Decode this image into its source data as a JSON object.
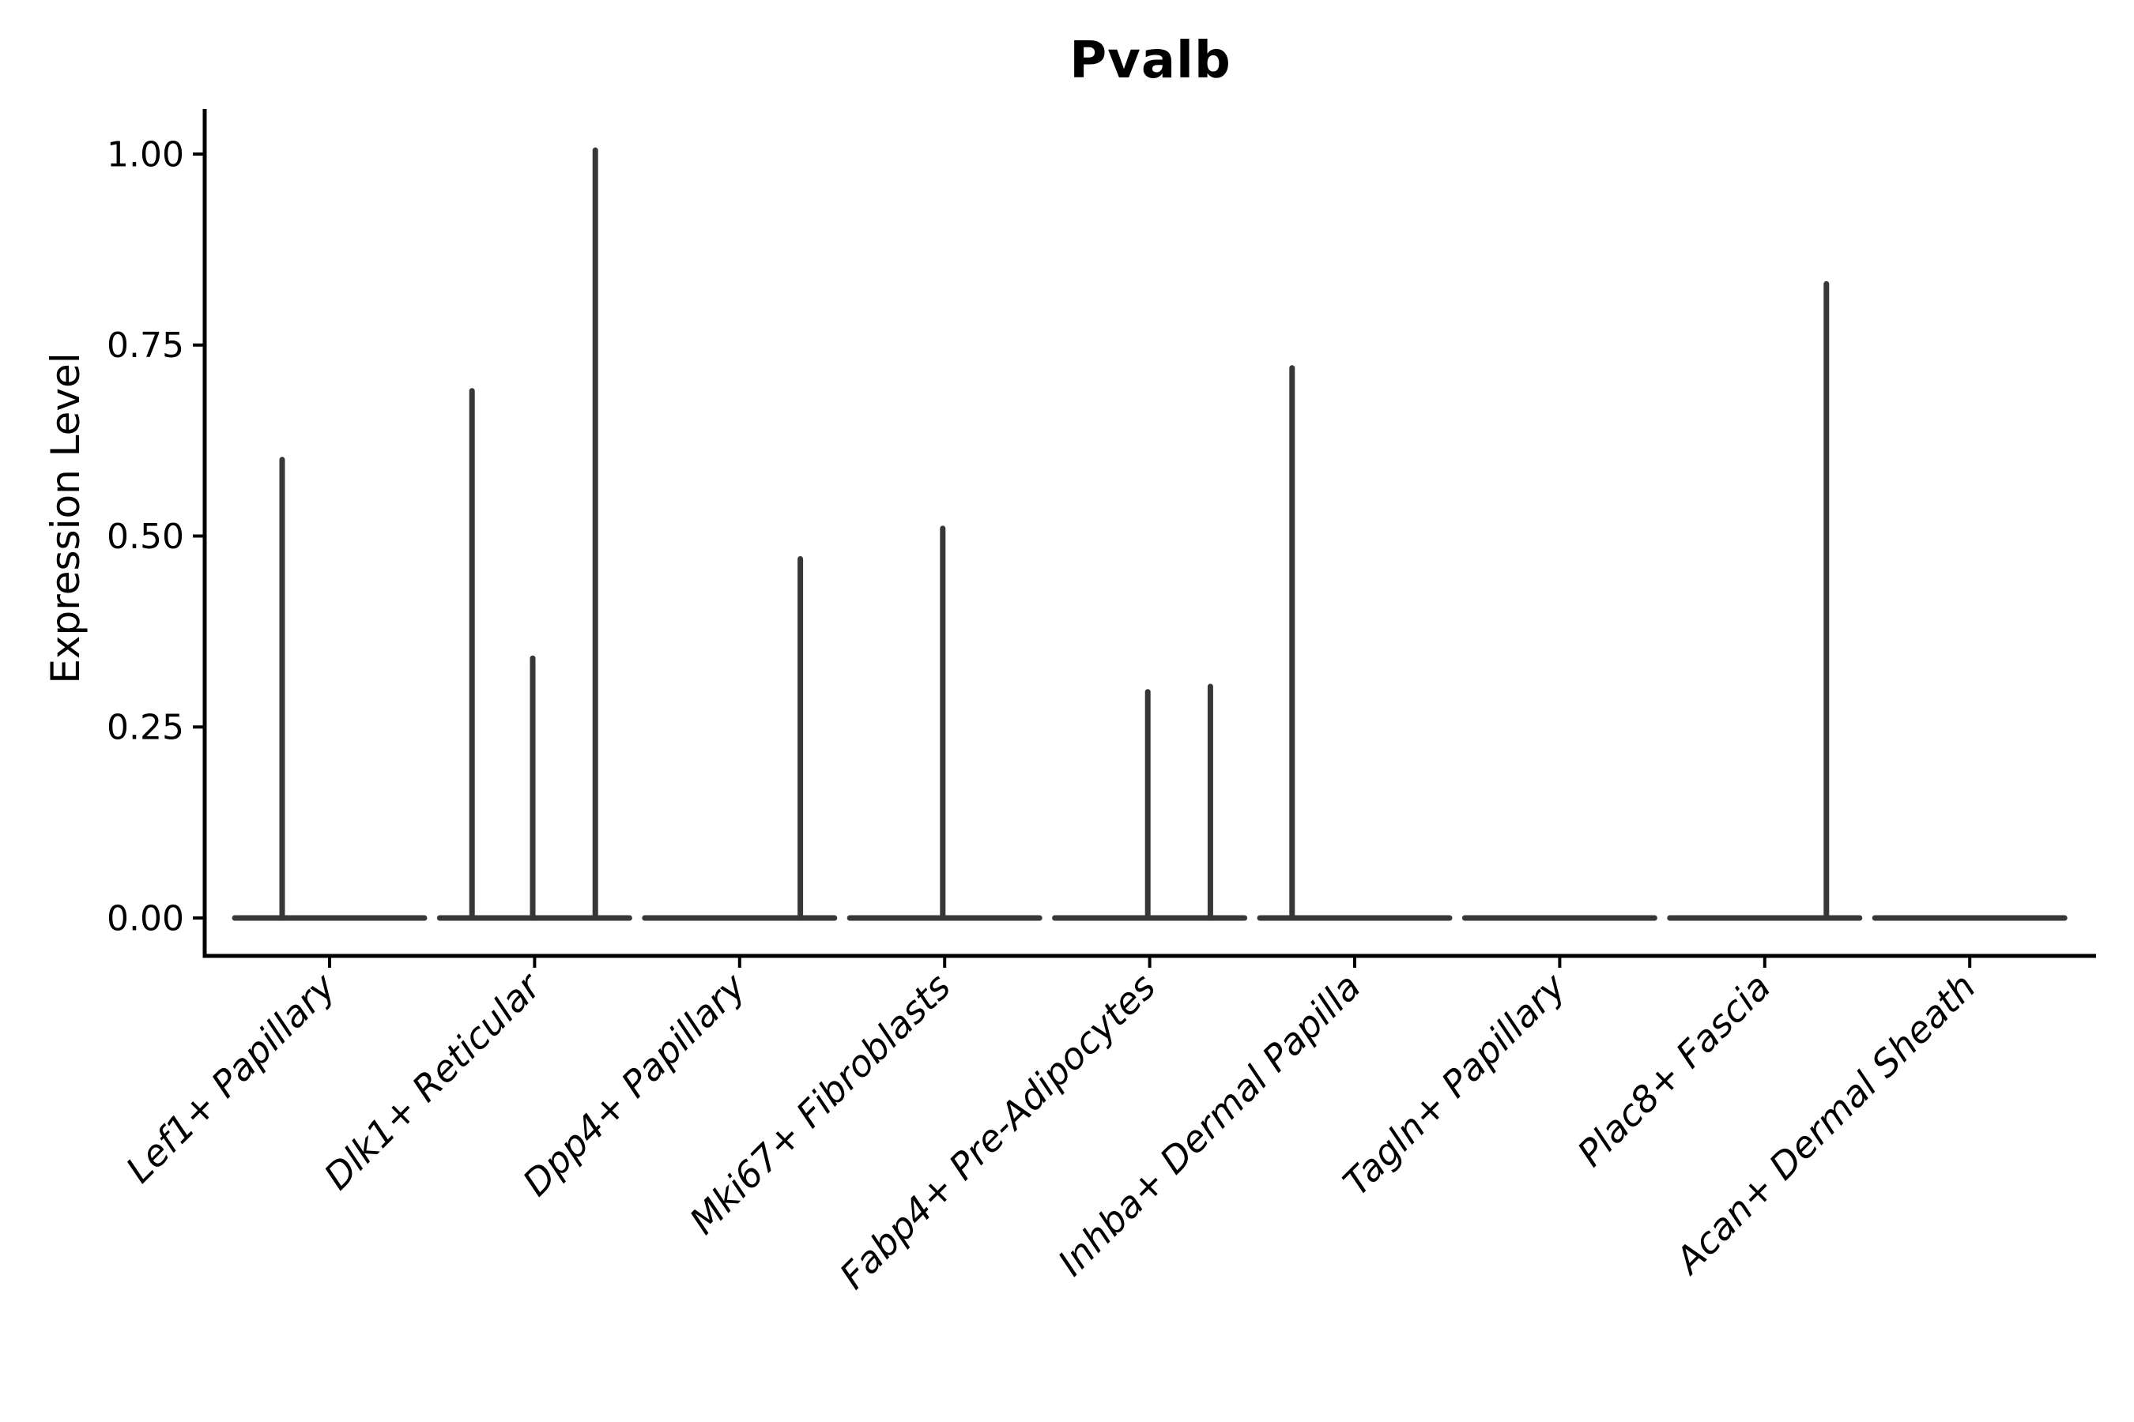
{
  "chart_data": {
    "type": "violin",
    "title": "Pvalb",
    "ylabel": "Expression Level",
    "xlabel": "",
    "yticks": [
      "0.00",
      "0.25",
      "0.50",
      "0.75",
      "1.00"
    ],
    "ytick_values": [
      0.0,
      0.25,
      0.5,
      0.75,
      1.0
    ],
    "ylim": [
      -0.05,
      1.058
    ],
    "grid": false,
    "legend": "none",
    "categories": [
      "Lef1+ Papillary",
      "Dlk1+ Reticular",
      "Dpp4+ Papillary",
      "Mki67+ Fibroblasts",
      "Fabp4+ Pre-Adipocytes",
      "Inhba+ Dermal Papilla",
      "Tagln+ Papillary",
      "Plac8+ Fascia",
      "Acan+ Dermal Sheath"
    ],
    "violins": [
      {
        "category": "Lef1+ Papillary",
        "baseline_value": 0.0,
        "spikes": [
          {
            "x_frac": 0.25,
            "value": 0.6
          }
        ]
      },
      {
        "category": "Dlk1+ Reticular",
        "baseline_value": 0.0,
        "spikes": [
          {
            "x_frac": 0.17,
            "value": 0.69
          },
          {
            "x_frac": 0.49,
            "value": 0.34
          },
          {
            "x_frac": 0.82,
            "value": 1.005
          }
        ]
      },
      {
        "category": "Dpp4+ Papillary",
        "baseline_value": 0.0,
        "spikes": [
          {
            "x_frac": 0.82,
            "value": 0.47
          }
        ]
      },
      {
        "category": "Mki67+ Fibroblasts",
        "baseline_value": 0.0,
        "spikes": [
          {
            "x_frac": 0.49,
            "value": 0.51
          }
        ]
      },
      {
        "category": "Fabp4+ Pre-Adipocytes",
        "baseline_value": 0.0,
        "spikes": [
          {
            "x_frac": 0.49,
            "value": 0.296
          },
          {
            "x_frac": 0.82,
            "value": 0.303
          }
        ]
      },
      {
        "category": "Inhba+ Dermal Papilla",
        "baseline_value": 0.0,
        "spikes": [
          {
            "x_frac": 0.17,
            "value": 0.72
          }
        ]
      },
      {
        "category": "Tagln+ Papillary",
        "baseline_value": 0.0,
        "spikes": []
      },
      {
        "category": "Plac8+ Fascia",
        "baseline_value": 0.0,
        "spikes": [
          {
            "x_frac": 0.825,
            "value": 0.83
          }
        ]
      },
      {
        "category": "Acan+ Dermal Sheath",
        "baseline_value": 0.0,
        "spikes": []
      }
    ],
    "colors": {
      "violin": "#373737",
      "axis": "#000000",
      "text": "#000000",
      "background": "#ffffff"
    }
  }
}
